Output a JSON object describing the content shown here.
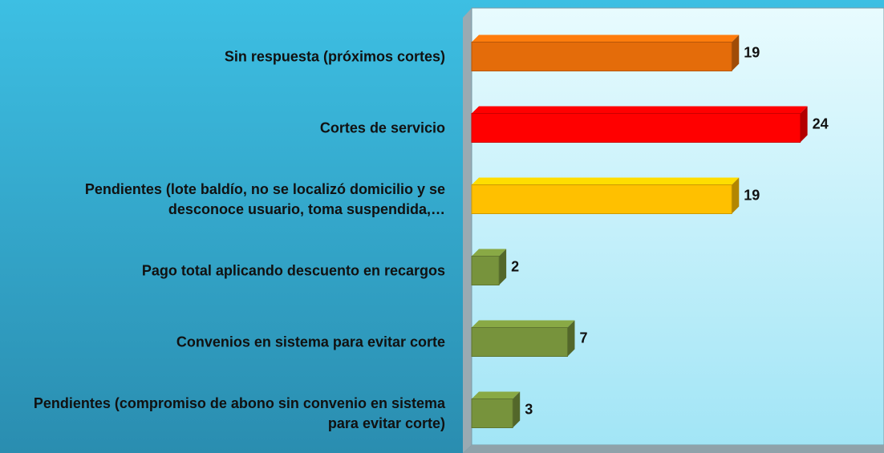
{
  "chart_data": {
    "type": "bar",
    "orientation": "horizontal",
    "categories": [
      "Sin respuesta (próximos cortes)",
      "Cortes de servicio",
      "Pendientes (lote baldío, no se localizó domicilio y se desconoce usuario, toma suspendida,…",
      "Pago total aplicando descuento en recargos",
      "Convenios en sistema para evitar corte",
      "Pendientes (compromiso de abono sin convenio en sistema para evitar corte)"
    ],
    "values": [
      19,
      24,
      19,
      2,
      7,
      3
    ],
    "colors": [
      "#e46c0a",
      "#ff0000",
      "#ffc000",
      "#77933c",
      "#77933c",
      "#77933c"
    ],
    "xlim": [
      0,
      30
    ]
  }
}
